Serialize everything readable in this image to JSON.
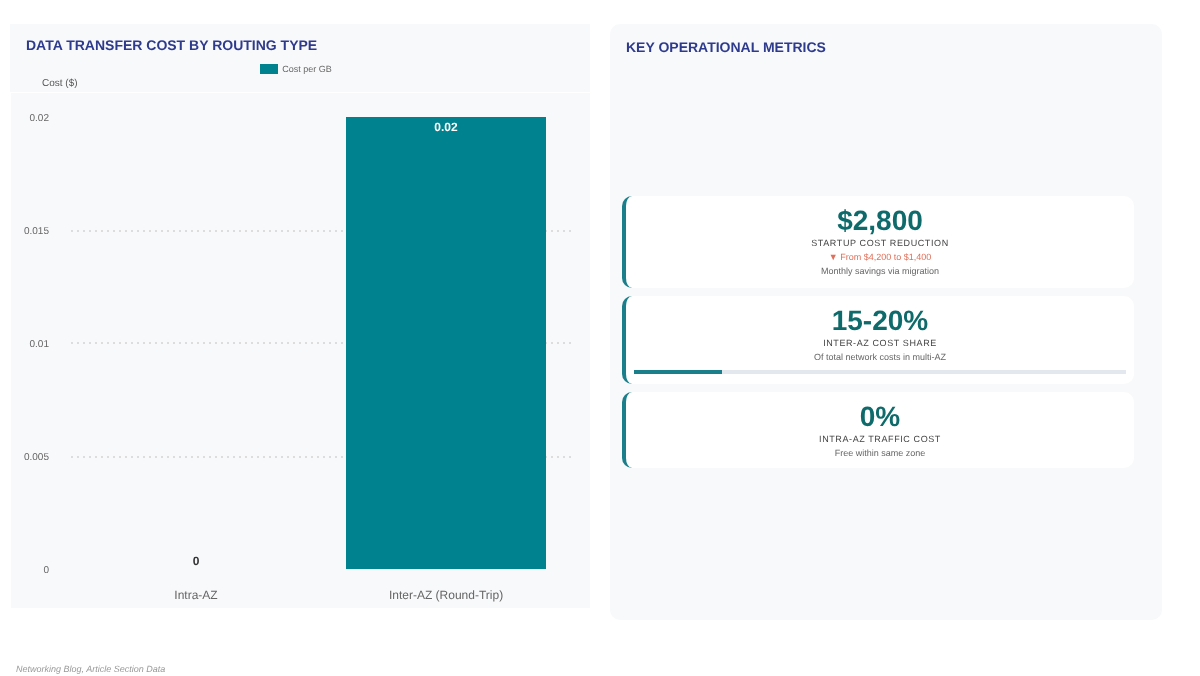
{
  "chart_data": [
    {
      "type": "bar",
      "title": "DATA TRANSFER COST BY ROUTING TYPE",
      "ylabel": "Cost ($)",
      "categories": [
        "Intra-AZ",
        "Inter-AZ (Round-Trip)"
      ],
      "series": [
        {
          "name": "Cost per GB",
          "color": "#00838f",
          "values": [
            0,
            0.02
          ]
        }
      ],
      "ylim": [
        0,
        0.02
      ],
      "yticks": [
        0,
        0.005,
        0.01,
        0.015,
        0.02
      ],
      "grid": "y",
      "legend": "top",
      "data_labels": true,
      "annotations": [
        "Networking Blog, Article Section Data"
      ]
    },
    {
      "type": "other",
      "title": "KEY OPERATIONAL METRICS",
      "annotations": [
        "$2,800",
        "STARTUP COST REDUCTION",
        "▼ From $4,200 to $1,400",
        "Monthly savings via migration",
        "15-20%",
        "INTER-AZ COST SHARE",
        "Of total network costs in multi-AZ",
        "0%",
        "INTRA-AZ TRAFFIC COST",
        "Free within same zone"
      ]
    }
  ]
}
